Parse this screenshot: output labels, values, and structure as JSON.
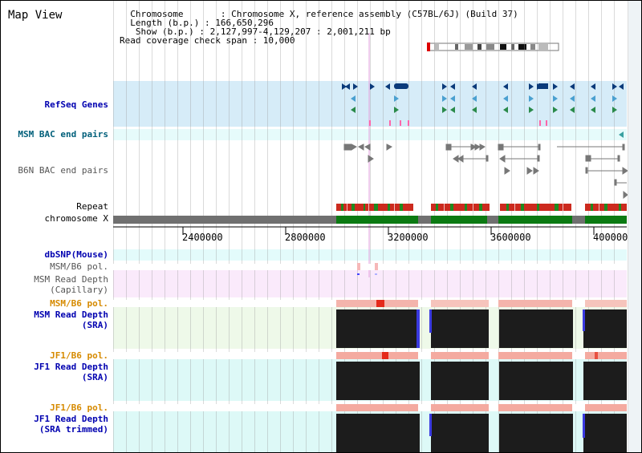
{
  "header": {
    "title": "Map View",
    "info_lines": [
      "  Chromosome       : Chromosome X, reference assembly (C57BL/6J) (Build 37)",
      "  Length (b.p.) : 166,650,296",
      "   Show (b.p.) : 2,127,997-4,129,207 : 2,001,211 bp",
      "Read coverage check span : 10,000"
    ]
  },
  "tracks": {
    "refseq": "RefSeq Genes",
    "msm_bac": "MSM BAC end pairs",
    "b6n_bac": "B6N BAC end pairs",
    "repeat": "Repeat",
    "chromosome": "chromosome X",
    "dbsnp": "dbSNP(Mouse)",
    "msm_b6_pol_1": "MSM/B6 pol.",
    "msm_read_depth_cap_1": "MSM Read Depth",
    "msm_read_depth_cap_2": "(Capillary)",
    "msm_b6_pol_2": "MSM/B6 pol.",
    "msm_read_depth_sra_1": "MSM Read Depth",
    "msm_read_depth_sra_2": "(SRA)",
    "jf1_b6_pol_1": "JF1/B6 pol.",
    "jf1_read_depth_sra_1": "JF1 Read Depth",
    "jf1_read_depth_sra_2": "(SRA)",
    "jf1_b6_pol_2": "JF1/B6 pol.",
    "jf1_read_depth_trim_1": "JF1 Read Depth",
    "jf1_read_depth_trim_2": "(SRA trimmed)"
  },
  "axis": {
    "ticks": [
      "2400000",
      "2800000",
      "3200000",
      "3600000",
      "4000000"
    ]
  },
  "colors": {
    "refseq_bg": "#d6ecf8",
    "bac_bg": "#e6fbfb",
    "repeat_red": "#e02020",
    "repeat_green": "#0a7a0a",
    "chromosome_gray": "#707070",
    "chromosome_green": "#0b7a12",
    "depth_dark": "#1c1c1c",
    "depth_blue": "#3333dd",
    "pol_pink": "#f4b0a8"
  }
}
